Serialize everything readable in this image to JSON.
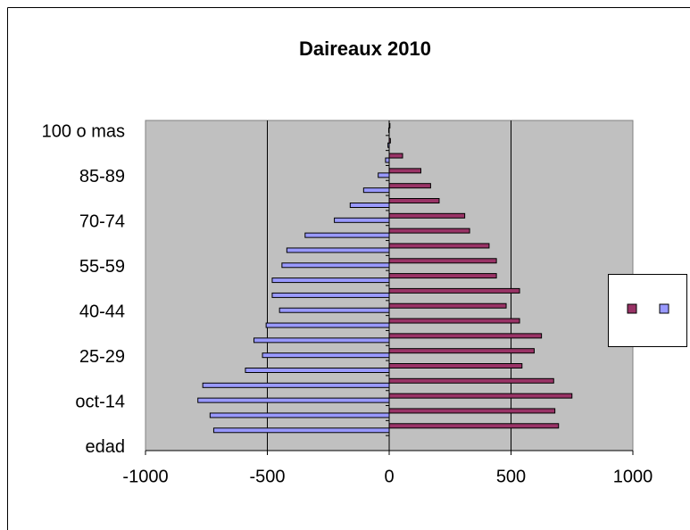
{
  "chart_data": {
    "type": "bar",
    "orientation": "horizontal",
    "title": "Daireaux 2010",
    "categories": [
      "edad",
      null,
      null,
      "oct-14",
      null,
      null,
      "25-29",
      null,
      null,
      "40-44",
      null,
      null,
      "55-59",
      null,
      null,
      "70-74",
      null,
      null,
      "85-89",
      null,
      null,
      "100 o mas"
    ],
    "series": [
      {
        "color": "#993366",
        "values": [
          null,
          695,
          680,
          750,
          675,
          545,
          595,
          625,
          535,
          480,
          535,
          440,
          440,
          410,
          330,
          310,
          205,
          170,
          130,
          55,
          5,
          3
        ]
      },
      {
        "color": "#9999ff",
        "values": [
          null,
          -720,
          -735,
          -785,
          -765,
          -590,
          -520,
          -555,
          -505,
          -450,
          -480,
          -480,
          -440,
          -420,
          -345,
          -225,
          -160,
          -105,
          -45,
          -15,
          -5,
          -2
        ]
      }
    ],
    "xlim": [
      -1000,
      1000
    ],
    "xticks": [
      -1000,
      -500,
      0,
      500,
      1000
    ],
    "grid": true,
    "legend": "right"
  }
}
